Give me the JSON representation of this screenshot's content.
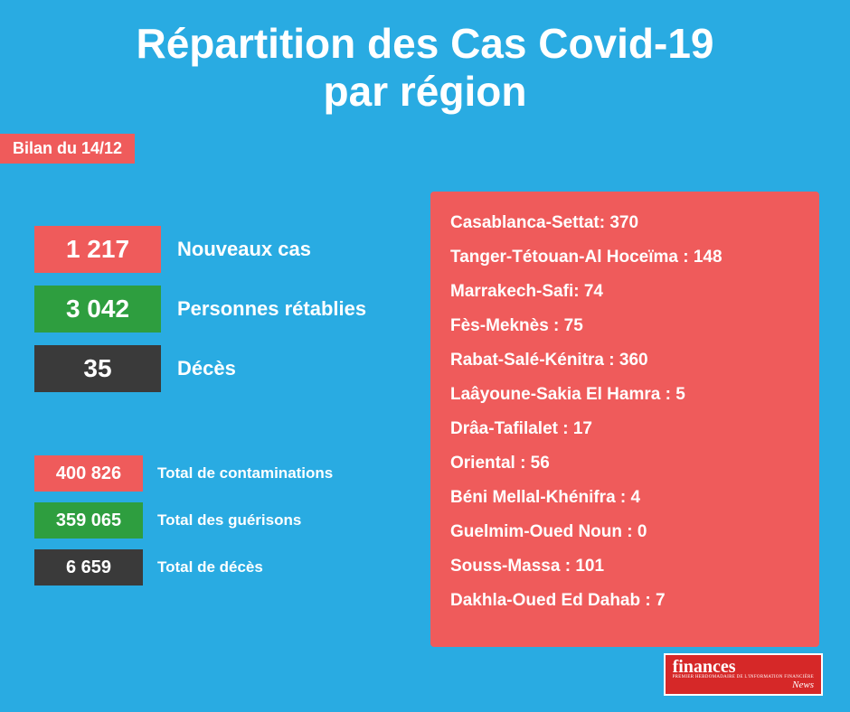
{
  "colors": {
    "background": "#29abe2",
    "red": "#ef5b5b",
    "green": "#2e9e3f",
    "dark": "#3a3a3a",
    "white": "#ffffff",
    "logo_bg": "#d62828"
  },
  "header": {
    "title_line1": "Répartition des Cas Covid-19",
    "title_line2": "par région",
    "date_badge": "Bilan du 14/12"
  },
  "daily_stats": [
    {
      "value": "1 217",
      "label": "Nouveaux cas",
      "color": "#ef5b5b"
    },
    {
      "value": "3 042",
      "label": "Personnes rétablies",
      "color": "#2e9e3f"
    },
    {
      "value": "35",
      "label": "Décès",
      "color": "#3a3a3a"
    }
  ],
  "total_stats": [
    {
      "value": "400 826",
      "label": "Total de contaminations",
      "color": "#ef5b5b"
    },
    {
      "value": "359 065",
      "label": "Total des guérisons",
      "color": "#2e9e3f"
    },
    {
      "value": "6 659",
      "label": "Total de décès",
      "color": "#3a3a3a"
    }
  ],
  "regions_panel": {
    "background": "#ef5b5b",
    "items": [
      "Casablanca-Settat: 370",
      "Tanger-Tétouan-Al Hoceïma : 148",
      "Marrakech-Safi: 74",
      "Fès-Meknès : 75",
      "Rabat-Salé-Kénitra : 360",
      "Laâyoune-Sakia El Hamra : 5",
      "Drâa-Tafilalet : 17",
      "Oriental : 56",
      "Béni Mellal-Khénifra : 4",
      "Guelmim-Oued Noun : 0",
      "Souss-Massa : 101",
      "Dakhla-Oued Ed Dahab : 7"
    ]
  },
  "logo": {
    "top": "finances",
    "bottom": "News",
    "sub": "PREMIER HEBDOMADAIRE DE L'INFORMATION FINANCIÈRE"
  }
}
